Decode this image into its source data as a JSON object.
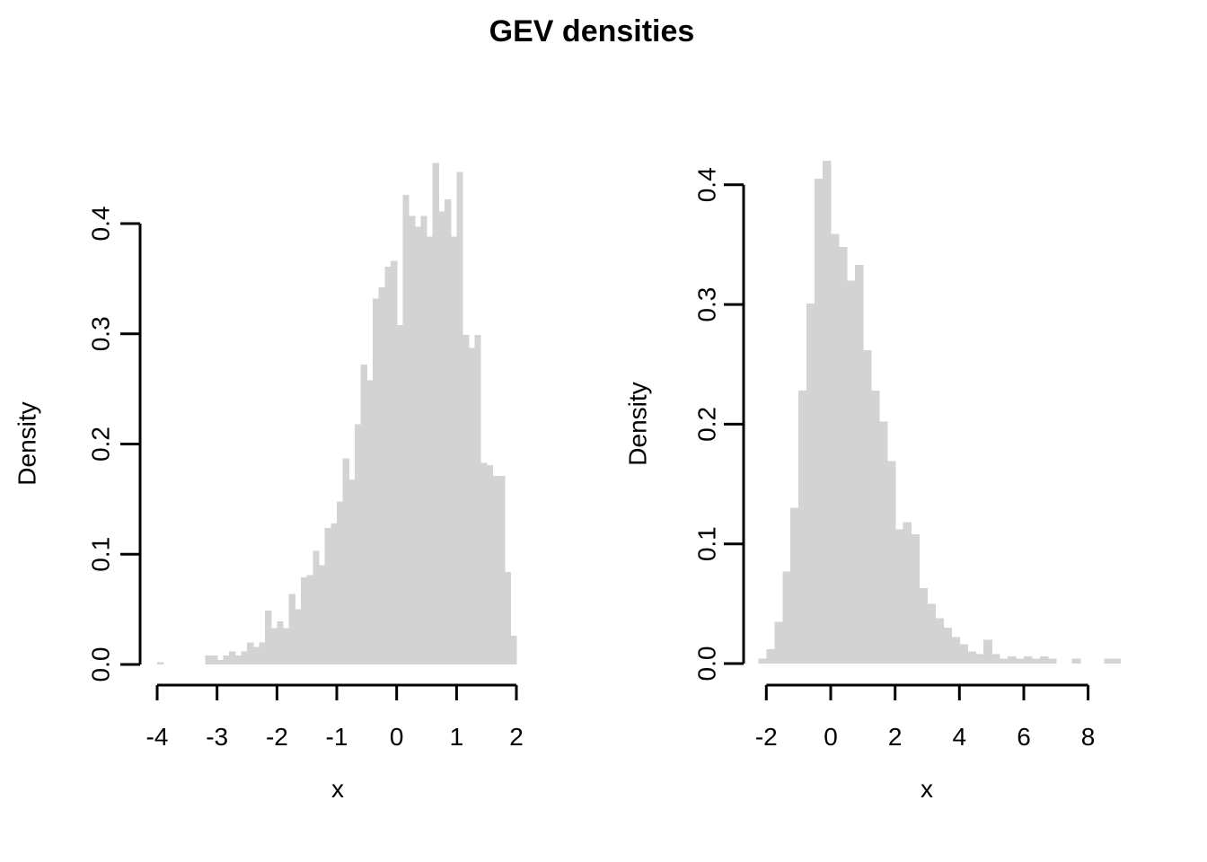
{
  "title": "GEV densities",
  "colors": {
    "bar_fill": "#d3d3d3",
    "axis": "#000000",
    "background": "#ffffff",
    "text": "#000000"
  },
  "chart_data": [
    {
      "type": "bar",
      "subtype": "histogram",
      "panel": "left",
      "title": "",
      "xlabel": "x",
      "ylabel": "Density",
      "bin_start": -4.0,
      "bin_width": 0.1,
      "x_ticks": [
        -4,
        -3,
        -2,
        -1,
        0,
        1,
        2
      ],
      "y_ticks": [
        "0.0",
        "0.1",
        "0.2",
        "0.3",
        "0.4"
      ],
      "xlim": [
        -4.35,
        2.35
      ],
      "ylim": [
        0,
        0.478
      ],
      "grid": false,
      "legend": false,
      "densities": [
        0.002,
        0,
        0,
        0,
        0,
        0,
        0,
        0,
        0.008,
        0.008,
        0.004,
        0.008,
        0.012,
        0.008,
        0.012,
        0.02,
        0.016,
        0.02,
        0.049,
        0.033,
        0.039,
        0.033,
        0.064,
        0.05,
        0.079,
        0.081,
        0.103,
        0.09,
        0.124,
        0.128,
        0.148,
        0.187,
        0.168,
        0.218,
        0.272,
        0.258,
        0.332,
        0.342,
        0.361,
        0.366,
        0.308,
        0.426,
        0.407,
        0.397,
        0.407,
        0.388,
        0.455,
        0.411,
        0.422,
        0.388,
        0.447,
        0.299,
        0.287,
        0.299,
        0.183,
        0.181,
        0.171,
        0.171,
        0.084,
        0.026
      ]
    },
    {
      "type": "bar",
      "subtype": "histogram",
      "panel": "right",
      "title": "",
      "xlabel": "x",
      "ylabel": "Density",
      "bin_start": -2.25,
      "bin_width": 0.25,
      "x_ticks": [
        -2,
        0,
        2,
        4,
        6,
        8
      ],
      "y_ticks": [
        "0.0",
        "0.1",
        "0.2",
        "0.3",
        "0.4"
      ],
      "xlim": [
        -2.5,
        9.25
      ],
      "ylim": [
        0,
        0.428
      ],
      "grid": false,
      "legend": false,
      "densities": [
        0.004,
        0.012,
        0.035,
        0.077,
        0.13,
        0.228,
        0.301,
        0.405,
        0.42,
        0.359,
        0.348,
        0.32,
        0.333,
        0.262,
        0.228,
        0.202,
        0.169,
        0.112,
        0.118,
        0.108,
        0.063,
        0.05,
        0.038,
        0.03,
        0.022,
        0.016,
        0.01,
        0.008,
        0.02,
        0.008,
        0.004,
        0.006,
        0.004,
        0.006,
        0.004,
        0.006,
        0.004,
        0,
        0,
        0.004,
        0,
        0,
        0,
        0.004,
        0.004
      ]
    }
  ]
}
